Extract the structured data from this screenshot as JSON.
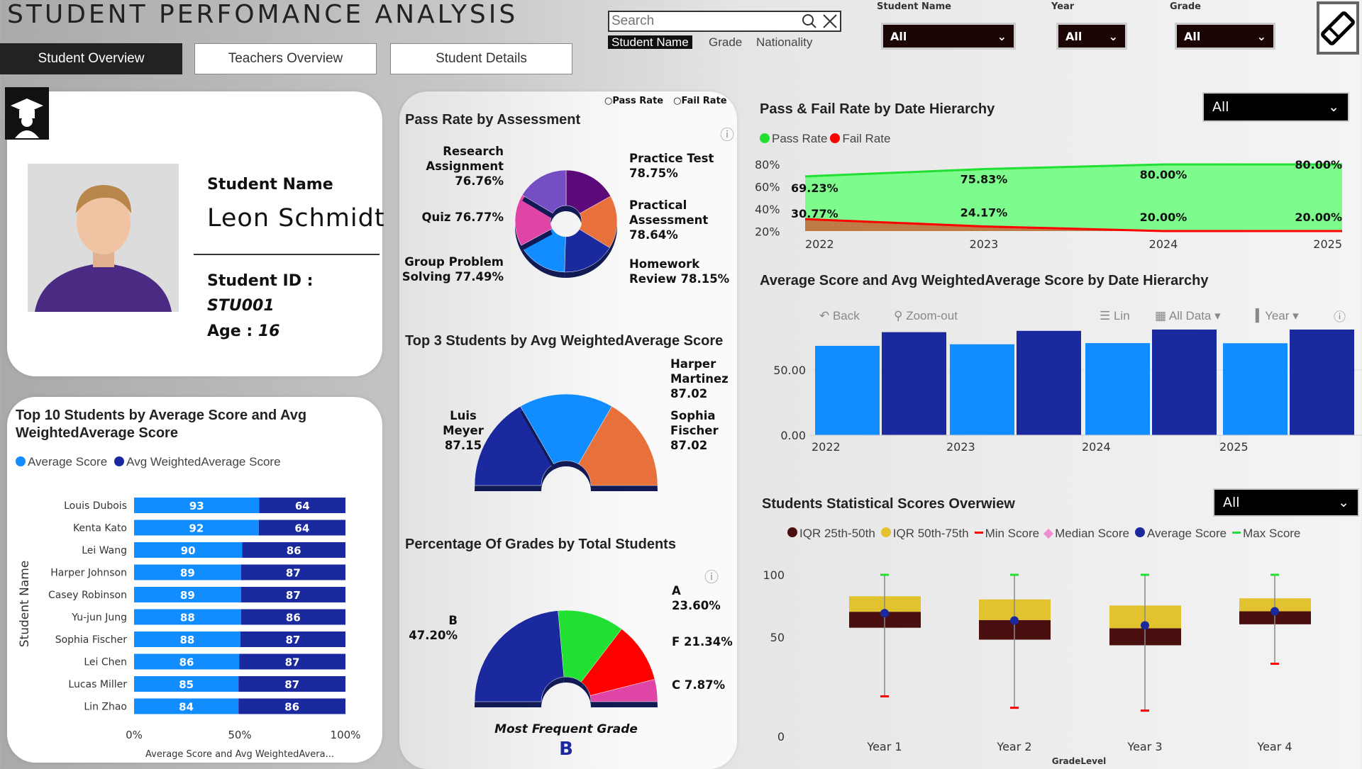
{
  "header": {
    "title": "STUDENT PERFOMANCE ANALYSIS",
    "tabs": [
      "Student Overview",
      "Teachers Overview",
      "Student Details"
    ],
    "search_placeholder": "Search",
    "search_fields": [
      "Student Name",
      "Grade",
      "Nationality"
    ]
  },
  "filters": [
    {
      "label": "Student Name",
      "value": "All"
    },
    {
      "label": "Year",
      "value": "All"
    },
    {
      "label": "Grade",
      "value": "All"
    }
  ],
  "profile": {
    "name_label": "Student Name",
    "name": "Leon Schmidt",
    "id_label": "Student ID :",
    "id": "STU001",
    "age_label": "Age :",
    "age": "16"
  },
  "colors": {
    "avg": "#118dff",
    "weighted": "#1a2a9e",
    "pass": "#22e033",
    "fail": "#ff0000"
  },
  "chart_data": [
    {
      "type": "bar",
      "id": "top10",
      "title": "Top 10 Students by Average Score and Avg WeightedAverage Score",
      "ylabel": "Student Name",
      "xlabel": "Average Score and Avg WeightedAvera...",
      "xticks": [
        "0%",
        "50%",
        "100%"
      ],
      "legend": [
        "Average Score",
        "Avg WeightedAverage Score"
      ],
      "categories": [
        "Louis Dubois",
        "Kenta Kato",
        "Lei Wang",
        "Harper Johnson",
        "Casey Robinson",
        "Yu-jun Jung",
        "Sophia Fischer",
        "Lei Chen",
        "Lucas Miller",
        "Lin Zhao"
      ],
      "series": [
        {
          "name": "Average Score",
          "values": [
            93,
            92,
            90,
            89,
            89,
            88,
            88,
            86,
            85,
            84
          ]
        },
        {
          "name": "Avg WeightedAverage Score",
          "values": [
            64,
            64,
            86,
            87,
            87,
            86,
            87,
            87,
            87,
            86
          ]
        }
      ]
    },
    {
      "type": "pie",
      "id": "assess",
      "title": "Pass Rate by Assessment",
      "radio": [
        "Pass Rate",
        "Fail Rate"
      ],
      "labels": [
        "Practice Test",
        "Practical Assessment",
        "Homework Review",
        "Group Problem Solving",
        "Quiz",
        "Research Assignment"
      ],
      "values": [
        78.75,
        78.64,
        78.15,
        77.49,
        76.77,
        76.76
      ],
      "display": [
        "Practice Test 78.75%",
        "Practical Assessment 78.64%",
        "Homework Review 78.15%",
        "Group Problem Solving 77.49%",
        "Quiz 76.77%",
        "Research Assignment 76.76%"
      ],
      "colors": [
        "#5c0a7a",
        "#e8703a",
        "#1a2a9e",
        "#118dff",
        "#e044a7",
        "#744ec2"
      ]
    },
    {
      "type": "pie",
      "id": "top3",
      "title": "Top 3 Students by Avg WeightedAverage Score",
      "labels": [
        "Luis Meyer",
        "Harper Martinez",
        "Sophia Fischer"
      ],
      "values": [
        87.15,
        87.02,
        87.02
      ],
      "display": [
        "87.15",
        "87.02",
        "87.02"
      ],
      "colors": [
        "#1a2a9e",
        "#118dff",
        "#e8703a"
      ]
    },
    {
      "type": "pie",
      "id": "grades",
      "title": "Percentage Of Grades by Total Students",
      "labels": [
        "B",
        "A",
        "F",
        "C"
      ],
      "values": [
        47.2,
        23.6,
        21.34,
        7.87
      ],
      "display": [
        "47.20%",
        "23.60%",
        "F 21.34%",
        "C 7.87%"
      ],
      "colors": [
        "#1a2a9e",
        "#22e033",
        "#ff0000",
        "#e044a7"
      ],
      "footer": "Most Frequent Grade",
      "footer_value": "B"
    },
    {
      "type": "area",
      "id": "passfail",
      "title": "Pass & Fail Rate by Date Hierarchy",
      "filter": "All",
      "x": [
        "2022",
        "2023",
        "2024",
        "2025"
      ],
      "yticks": [
        "80%",
        "60%",
        "40%",
        "20%"
      ],
      "ylim": [
        20,
        80
      ],
      "series": [
        {
          "name": "Pass Rate",
          "values": [
            69.23,
            75.83,
            80.0,
            80.0
          ],
          "labels": [
            "69.23%",
            "75.83%",
            "80.00%",
            "80.00%"
          ]
        },
        {
          "name": "Fail Rate",
          "values": [
            30.77,
            24.17,
            20.0,
            20.0
          ],
          "labels": [
            "30.77%",
            "24.17%",
            "20.00%",
            "20.00%"
          ]
        }
      ]
    },
    {
      "type": "bar",
      "id": "avgdate",
      "title": "Average Score and Avg WeightedAverage Score by Date Hierarchy",
      "toolbar": [
        "Back",
        "Zoom-out",
        "Lin",
        "All Data",
        "Year"
      ],
      "categories": [
        "2022",
        "2023",
        "2024",
        "2025"
      ],
      "yticks": [
        "50.00",
        "0.00"
      ],
      "ylim": [
        0,
        81
      ],
      "series": [
        {
          "name": "Average Score",
          "values": [
            68.5,
            69.7,
            70.6,
            70.5
          ]
        },
        {
          "name": "Avg WeightedAverage Score",
          "values": [
            79,
            80,
            81,
            81
          ]
        }
      ]
    },
    {
      "type": "box",
      "id": "stats",
      "title": "Students Statistical Scores Overwiew",
      "filter": "All",
      "legend": [
        "IQR 25th-50th",
        "IQR 50th-75th",
        "Min Score",
        "Median Score",
        "Average Score",
        "Max Score"
      ],
      "xlabel": "GradeLevel",
      "categories": [
        "Year 1",
        "Year 2",
        "Year 3",
        "Year 4"
      ],
      "yticks": [
        "100",
        "50",
        "0"
      ],
      "ylim": [
        0,
        100
      ],
      "min": [
        22.4,
        15.1,
        13.3,
        43.2
      ],
      "q1": [
        66.2,
        58.6,
        55,
        68.4
      ],
      "median": [
        76.4,
        71.1,
        65.9,
        76.7
      ],
      "q3": [
        86.3,
        84.3,
        80.4,
        85
      ],
      "max": [
        100,
        100,
        100,
        100
      ],
      "mean": [
        75.5,
        70.8,
        67.7,
        76.7
      ]
    }
  ]
}
